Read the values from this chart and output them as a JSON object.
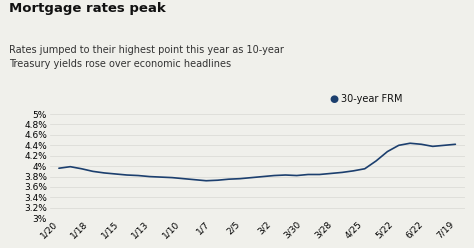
{
  "title": "Mortgage rates peak",
  "subtitle": "Rates jumped to their highest point this year as 10-year\nTreasury yields rose over economic headlines",
  "legend_label": "30-year FRM",
  "line_color": "#1c3f6e",
  "background_color": "#f0f0eb",
  "ylim": [
    3.0,
    5.0
  ],
  "yticks": [
    3.0,
    3.2,
    3.4,
    3.6,
    3.8,
    4.0,
    4.2,
    4.4,
    4.6,
    4.8,
    5.0
  ],
  "xtick_labels": [
    "1/20",
    "1/18",
    "1/15",
    "1/13",
    "1/10",
    "1/7",
    "2/5",
    "3/2",
    "3/30",
    "3/28",
    "4/25",
    "5/22",
    "6/22",
    "7/19"
  ],
  "y_values": [
    3.96,
    3.99,
    3.95,
    3.9,
    3.87,
    3.85,
    3.83,
    3.82,
    3.8,
    3.79,
    3.78,
    3.76,
    3.74,
    3.72,
    3.73,
    3.75,
    3.76,
    3.78,
    3.8,
    3.82,
    3.83,
    3.82,
    3.84,
    3.84,
    3.86,
    3.88,
    3.91,
    3.95,
    4.1,
    4.28,
    4.4,
    4.44,
    4.42,
    4.38,
    4.4,
    4.42
  ],
  "title_fontsize": 9.5,
  "subtitle_fontsize": 7.0,
  "tick_fontsize": 6.5,
  "legend_fontsize": 7.0,
  "title_color": "#111111",
  "subtitle_color": "#333333",
  "grid_color": "#d8d8d4"
}
